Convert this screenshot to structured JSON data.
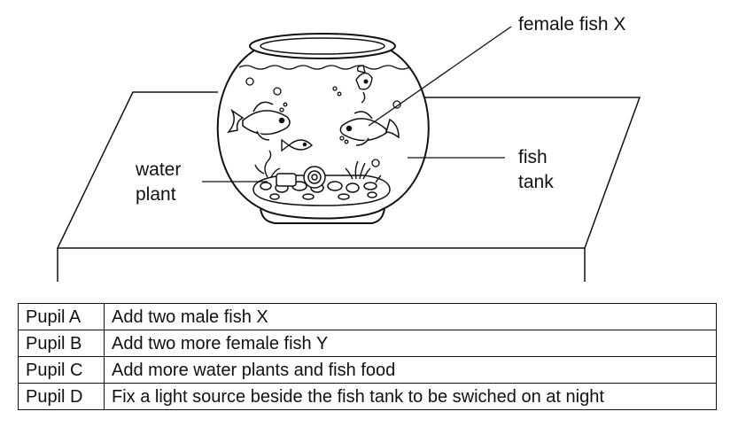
{
  "labels": {
    "female_fish": "female fish X",
    "water_plant_line1": "water",
    "water_plant_line2": "plant",
    "fish_tank_line1": "fish",
    "fish_tank_line2": "tank"
  },
  "table": {
    "rows": [
      {
        "pupil": "Pupil A",
        "suggestion": "Add two male fish X"
      },
      {
        "pupil": "Pupil B",
        "suggestion": "Add two more female fish Y"
      },
      {
        "pupil": "Pupil C",
        "suggestion": "Add more water plants and fish food"
      },
      {
        "pupil": "Pupil D",
        "suggestion": "Fix a light source beside the fish tank to be swiched on at night"
      }
    ]
  }
}
